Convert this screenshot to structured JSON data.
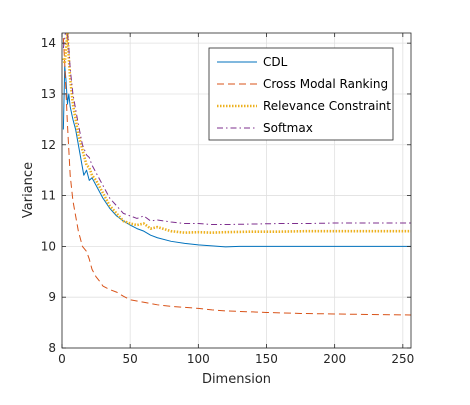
{
  "chart_data": {
    "type": "line",
    "xlabel": "Dimension",
    "ylabel": "Variance",
    "xlim": [
      0,
      256
    ],
    "ylim": [
      8,
      14.2
    ],
    "xticks": [
      0,
      50,
      100,
      150,
      200,
      250
    ],
    "yticks": [
      8,
      9,
      10,
      11,
      12,
      13,
      14
    ],
    "grid": true,
    "legend_position": "top-right",
    "series": [
      {
        "name": "CDL",
        "color": "#0072bd",
        "dash": "solid",
        "x": [
          1,
          2,
          3,
          4,
          5,
          6,
          8,
          10,
          12,
          14,
          16,
          18,
          20,
          22,
          25,
          28,
          30,
          35,
          40,
          45,
          50,
          55,
          60,
          65,
          70,
          80,
          90,
          100,
          110,
          120,
          130,
          140,
          150,
          175,
          200,
          225,
          256
        ],
        "y": [
          12.3,
          13.55,
          13.25,
          12.8,
          13.0,
          12.75,
          12.5,
          12.3,
          12.0,
          11.7,
          11.4,
          11.5,
          11.3,
          11.35,
          11.2,
          11.05,
          10.95,
          10.75,
          10.6,
          10.5,
          10.42,
          10.35,
          10.3,
          10.22,
          10.17,
          10.1,
          10.06,
          10.03,
          10.01,
          9.99,
          10.0,
          10.0,
          10.0,
          10.0,
          10.0,
          10.0,
          10.0
        ]
      },
      {
        "name": "Cross Modal Ranking",
        "color": "#d95319",
        "dash": "long-dash",
        "x": [
          1,
          2,
          3,
          4,
          5,
          6,
          8,
          10,
          12,
          15,
          18,
          20,
          22,
          25,
          28,
          30,
          35,
          40,
          45,
          50,
          60,
          70,
          80,
          90,
          100,
          110,
          120,
          130,
          140,
          150,
          175,
          200,
          225,
          256
        ],
        "y": [
          14.1,
          13.6,
          13.0,
          12.4,
          11.9,
          11.4,
          10.9,
          10.6,
          10.3,
          10.0,
          9.9,
          9.75,
          9.55,
          9.4,
          9.3,
          9.22,
          9.15,
          9.1,
          9.02,
          8.95,
          8.9,
          8.85,
          8.82,
          8.8,
          8.78,
          8.75,
          8.73,
          8.72,
          8.71,
          8.7,
          8.68,
          8.67,
          8.66,
          8.65
        ]
      },
      {
        "name": "Relevance Constraint",
        "color": "#edb120",
        "dash": "dotted",
        "x": [
          1,
          2,
          3,
          4,
          5,
          6,
          8,
          10,
          12,
          15,
          18,
          20,
          22,
          25,
          28,
          30,
          35,
          40,
          45,
          50,
          55,
          60,
          65,
          70,
          80,
          90,
          100,
          110,
          120,
          140,
          160,
          180,
          200,
          225,
          256
        ],
        "y": [
          13.7,
          13.6,
          13.9,
          14.2,
          13.7,
          13.3,
          12.8,
          12.5,
          12.2,
          11.9,
          11.6,
          11.55,
          11.4,
          11.3,
          11.15,
          11.05,
          10.8,
          10.65,
          10.5,
          10.45,
          10.42,
          10.45,
          10.35,
          10.38,
          10.3,
          10.27,
          10.28,
          10.27,
          10.28,
          10.29,
          10.29,
          10.3,
          10.3,
          10.3,
          10.3
        ]
      },
      {
        "name": "Softmax",
        "color": "#7e2f8e",
        "dash": "dash-dot",
        "x": [
          1,
          2,
          3,
          4,
          5,
          6,
          8,
          10,
          12,
          15,
          18,
          20,
          22,
          25,
          28,
          30,
          35,
          40,
          45,
          50,
          55,
          60,
          65,
          70,
          80,
          90,
          100,
          110,
          120,
          140,
          160,
          180,
          200,
          225,
          256
        ],
        "y": [
          13.9,
          14.1,
          14.3,
          14.2,
          13.9,
          13.5,
          13.0,
          12.7,
          12.4,
          12.0,
          11.8,
          11.75,
          11.6,
          11.45,
          11.3,
          11.2,
          10.95,
          10.8,
          10.65,
          10.6,
          10.55,
          10.6,
          10.5,
          10.52,
          10.48,
          10.45,
          10.45,
          10.43,
          10.43,
          10.44,
          10.45,
          10.45,
          10.46,
          10.46,
          10.46
        ]
      }
    ]
  }
}
